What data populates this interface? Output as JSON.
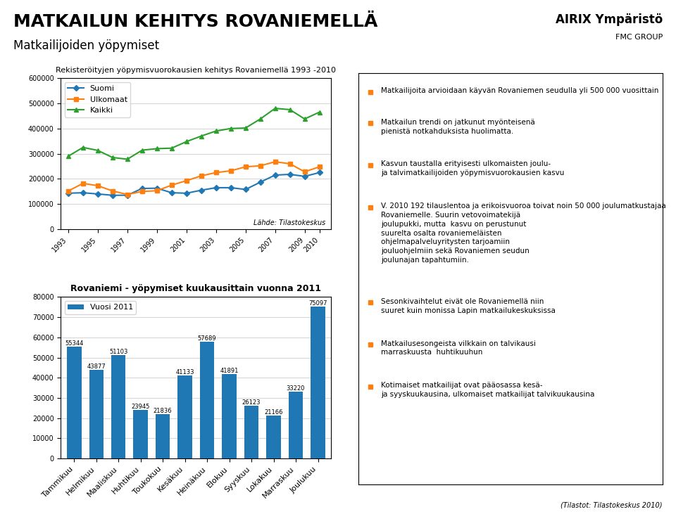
{
  "title": "MATKAILUN KEHITYS ROVANIEMELLÄ",
  "subtitle": "Matkailijoiden yöpymiset",
  "annotations": [
    "Matkailijoita arvioidaan käyvän Rovaniemen seudulla yli 500 000 vuosittain",
    "Matkailun trendi on jatkunut myönteisenä\npienistä notkahduksista huolimatta.",
    "Kasvun taustalla erityisesti ulkomaisten joulu-\nja talvimatkailijoiden yöpymisvuorokausien kasvu",
    "V. 2010 192 tilauslentoa ja erikoisvuoroa toivat noin 50 000 joulumatkustajaa\nRovaniemelle. Suurin vetovoimatekijä\njoulupukki, mutta  kasvu on perustunut\nsuurelta osalta rovaniemeläisten\nohjelmapalveluyritysten tarjoamiin\njouluohjelmiin sekä Rovaniemen seudun\njoulunajan tapahtumiin.",
    "Sesonkivaihtelut eivät ole Rovaniemellä niin\nsuuret kuin monissa Lapin matkailukeskuksissa",
    "Matkailusesongeista vilkkain on talvikausi\nmarraskuusta  huhtikuuhun",
    "Kotimaiset matkailijat ovat pääosassa kesä-\nja syyskuukausina, ulkomaiset matkailijat talvikuukausina",
    "AIRIX Ympäristö",
    "FMC GROUP",
    "(Tilastot: Tilastokeskus 2010)"
  ],
  "chart_data": [
    {
      "type": "line",
      "title": "Rekisteröityjen yöpymisvuorokausien kehitys Rovaniemellä 1993 -2010",
      "annotations": [
        "Lähde: Tilastokeskus"
      ],
      "x": [
        1993,
        1994,
        1995,
        1996,
        1997,
        1998,
        1999,
        2000,
        2001,
        2002,
        2003,
        2004,
        2005,
        2006,
        2007,
        2008,
        2009,
        2010
      ],
      "series": [
        {
          "name": "Suomi",
          "marker": "diamond",
          "values": [
            143000,
            145000,
            140000,
            135000,
            135000,
            162000,
            163000,
            145000,
            143000,
            155000,
            165000,
            165000,
            158000,
            187000,
            215000,
            218000,
            210000,
            225000
          ]
        },
        {
          "name": "Ulkomaat",
          "marker": "square",
          "values": [
            152000,
            182000,
            173000,
            152000,
            138000,
            150000,
            153000,
            175000,
            193000,
            212000,
            225000,
            232000,
            248000,
            252000,
            268000,
            260000,
            228000,
            248000
          ]
        },
        {
          "name": "Kaikki",
          "marker": "triangle",
          "values": [
            290000,
            325000,
            313000,
            285000,
            278000,
            314000,
            320000,
            322000,
            348000,
            370000,
            390000,
            400000,
            402000,
            438000,
            480000,
            475000,
            438000,
            465000
          ]
        }
      ],
      "xlim": [
        1992.5,
        2010.8
      ],
      "xticks": [
        1993,
        1995,
        1997,
        1999,
        2001,
        2003,
        2005,
        2007,
        2009,
        2010
      ],
      "ylim": [
        0,
        600000
      ],
      "yticks": [
        0,
        100000,
        200000,
        300000,
        400000,
        500000,
        600000
      ],
      "grid": true,
      "legend": "upper left"
    },
    {
      "type": "bar",
      "title": "Rovaniemi - yöpymiset kuukausittain vuonna 2011",
      "categories": [
        "Tammikuu",
        "Helmikuu",
        "Maaliskuu",
        "Huhtikuu",
        "Toukokuu",
        "Kesäkuu",
        "Heinäkuu",
        "Elokuu",
        "Syyskuu",
        "Lokakuu",
        "Marraskuu",
        "Joulukuu"
      ],
      "series": [
        {
          "name": "Vuosi 2011",
          "values": [
            55344,
            43877,
            51103,
            23945,
            21836,
            41133,
            57689,
            41891,
            26123,
            21166,
            33220,
            75097
          ]
        }
      ],
      "ylim": [
        0,
        80000
      ],
      "yticks": [
        0,
        10000,
        20000,
        30000,
        40000,
        50000,
        60000,
        70000,
        80000
      ],
      "grid": true,
      "data_labels": true,
      "legend": "upper left"
    }
  ]
}
